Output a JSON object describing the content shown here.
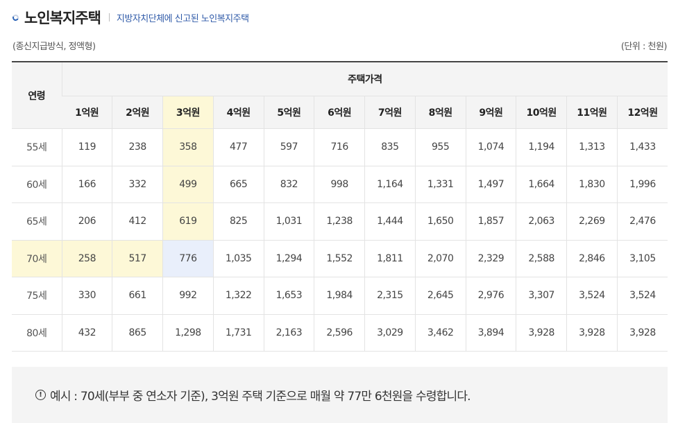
{
  "header": {
    "title": "노인복지주택",
    "subtitle": "지방자치단체에 신고된 노인복지주택"
  },
  "meta": {
    "left": "(종신지급방식, 정액형)",
    "right": "(단위 : 천원)"
  },
  "table": {
    "age_header": "연령",
    "price_header": "주택가격",
    "columns": [
      "1억원",
      "2억원",
      "3억원",
      "4억원",
      "5억원",
      "6억원",
      "7억원",
      "8억원",
      "9억원",
      "10억원",
      "11억원",
      "12억원"
    ],
    "rows": [
      {
        "age": "55세",
        "values": [
          "119",
          "238",
          "358",
          "477",
          "597",
          "716",
          "835",
          "955",
          "1,074",
          "1,194",
          "1,313",
          "1,433"
        ]
      },
      {
        "age": "60세",
        "values": [
          "166",
          "332",
          "499",
          "665",
          "832",
          "998",
          "1,164",
          "1,331",
          "1,497",
          "1,664",
          "1,830",
          "1,996"
        ]
      },
      {
        "age": "65세",
        "values": [
          "206",
          "412",
          "619",
          "825",
          "1,031",
          "1,238",
          "1,444",
          "1,650",
          "1,857",
          "2,063",
          "2,269",
          "2,476"
        ]
      },
      {
        "age": "70세",
        "values": [
          "258",
          "517",
          "776",
          "1,035",
          "1,294",
          "1,552",
          "1,811",
          "2,070",
          "2,329",
          "2,588",
          "2,846",
          "3,105"
        ]
      },
      {
        "age": "75세",
        "values": [
          "330",
          "661",
          "992",
          "1,322",
          "1,653",
          "1,984",
          "2,315",
          "2,645",
          "2,976",
          "3,307",
          "3,524",
          "3,524"
        ]
      },
      {
        "age": "80세",
        "values": [
          "432",
          "865",
          "1,298",
          "1,731",
          "2,163",
          "2,596",
          "3,029",
          "3,462",
          "3,894",
          "3,928",
          "3,928",
          "3,928"
        ]
      }
    ],
    "highlight_color": "#fdf8d7",
    "focus_color": "#e9effb"
  },
  "note": {
    "icon": "info-circle-icon",
    "text": "예시 : 70세(부부 중 연소자 기준), 3억원 주택 기준으로 매월 약 77만 6천원을 수령합니다."
  }
}
